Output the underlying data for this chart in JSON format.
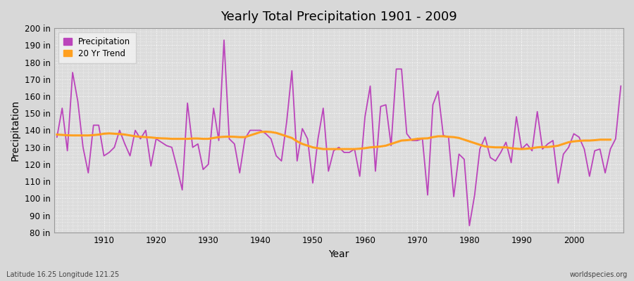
{
  "title": "Yearly Total Precipitation 1901 - 2009",
  "xlabel": "Year",
  "ylabel": "Precipitation",
  "fig_bg_color": "#d8d8d8",
  "plot_bg_color": "#dcdcdc",
  "precip_color": "#bb44bb",
  "trend_color": "#ffa020",
  "legend_labels": [
    "Precipitation",
    "20 Yr Trend"
  ],
  "ylim": [
    80,
    200
  ],
  "yticks": [
    80,
    90,
    100,
    110,
    120,
    130,
    140,
    150,
    160,
    170,
    180,
    190,
    200
  ],
  "xlim": [
    1901,
    2009
  ],
  "xticks": [
    1910,
    1920,
    1930,
    1940,
    1950,
    1960,
    1970,
    1980,
    1990,
    2000
  ],
  "years": [
    1901,
    1902,
    1903,
    1904,
    1905,
    1906,
    1907,
    1908,
    1909,
    1910,
    1911,
    1912,
    1913,
    1914,
    1915,
    1916,
    1917,
    1918,
    1919,
    1920,
    1921,
    1922,
    1923,
    1924,
    1925,
    1926,
    1927,
    1928,
    1929,
    1930,
    1931,
    1932,
    1933,
    1934,
    1935,
    1936,
    1937,
    1938,
    1939,
    1940,
    1941,
    1942,
    1943,
    1944,
    1945,
    1946,
    1947,
    1948,
    1949,
    1950,
    1951,
    1952,
    1953,
    1954,
    1955,
    1956,
    1957,
    1958,
    1959,
    1960,
    1961,
    1962,
    1963,
    1964,
    1965,
    1966,
    1967,
    1968,
    1969,
    1970,
    1971,
    1972,
    1973,
    1974,
    1975,
    1976,
    1977,
    1978,
    1979,
    1980,
    1981,
    1982,
    1983,
    1984,
    1985,
    1986,
    1987,
    1988,
    1989,
    1990,
    1991,
    1992,
    1993,
    1994,
    1995,
    1996,
    1997,
    1998,
    1999,
    2000,
    2001,
    2002,
    2003,
    2004,
    2005,
    2006,
    2007,
    2008,
    2009
  ],
  "precip": [
    136,
    153,
    128,
    174,
    157,
    130,
    115,
    143,
    143,
    125,
    127,
    130,
    140,
    132,
    125,
    140,
    135,
    140,
    119,
    135,
    133,
    131,
    130,
    118,
    105,
    156,
    130,
    132,
    117,
    120,
    153,
    134,
    193,
    135,
    132,
    115,
    135,
    140,
    140,
    140,
    138,
    135,
    125,
    122,
    145,
    175,
    122,
    141,
    135,
    109,
    135,
    153,
    116,
    128,
    130,
    127,
    127,
    129,
    113,
    148,
    166,
    116,
    154,
    155,
    131,
    176,
    176,
    138,
    134,
    134,
    135,
    102,
    155,
    163,
    137,
    136,
    101,
    126,
    123,
    84,
    102,
    129,
    136,
    124,
    122,
    127,
    133,
    121,
    148,
    129,
    132,
    128,
    151,
    129,
    132,
    134,
    109,
    126,
    130,
    138,
    136,
    129,
    113,
    128,
    129,
    115,
    129,
    135,
    166
  ],
  "trend_years": [
    1901,
    1902,
    1903,
    1904,
    1905,
    1906,
    1907,
    1908,
    1909,
    1910,
    1911,
    1912,
    1913,
    1914,
    1915,
    1916,
    1917,
    1918,
    1919,
    1920,
    1921,
    1922,
    1923,
    1924,
    1925,
    1926,
    1927,
    1928,
    1929,
    1930,
    1931,
    1932,
    1933,
    1934,
    1935,
    1936,
    1937,
    1938,
    1939,
    1940,
    1941,
    1942,
    1943,
    1944,
    1945,
    1946,
    1947,
    1948,
    1949,
    1950,
    1951,
    1952,
    1953,
    1954,
    1955,
    1956,
    1957,
    1958,
    1959,
    1960,
    1961,
    1962,
    1963,
    1964,
    1965,
    1966,
    1967,
    1968,
    1969,
    1970,
    1971,
    1972,
    1973,
    1974,
    1975,
    1976,
    1977,
    1978,
    1979,
    1980,
    1981,
    1982,
    1983,
    1984,
    1985,
    1986,
    1987,
    1988,
    1989,
    1990,
    1991,
    1992,
    1993,
    1994,
    1995,
    1996,
    1997,
    1998,
    1999,
    2000,
    2001,
    2002,
    2003,
    2004,
    2005,
    2006,
    2007
  ],
  "trend": [
    137.5,
    137.3,
    137.1,
    137.0,
    137.0,
    137.0,
    137.0,
    137.2,
    137.5,
    138.0,
    138.2,
    138.0,
    137.8,
    137.5,
    137.0,
    136.5,
    136.2,
    136.0,
    135.8,
    135.5,
    135.3,
    135.2,
    135.0,
    135.0,
    135.0,
    135.0,
    135.2,
    135.2,
    135.0,
    135.0,
    135.5,
    136.0,
    136.2,
    136.3,
    136.2,
    136.0,
    136.0,
    137.0,
    138.0,
    139.0,
    139.2,
    139.0,
    138.5,
    137.5,
    136.5,
    135.5,
    133.5,
    132.0,
    131.0,
    130.0,
    129.5,
    129.0,
    129.0,
    129.0,
    129.0,
    129.0,
    129.0,
    129.0,
    129.2,
    129.5,
    130.0,
    130.2,
    130.5,
    131.0,
    132.0,
    133.0,
    134.0,
    134.2,
    134.5,
    135.0,
    135.2,
    135.3,
    136.0,
    136.5,
    136.5,
    136.2,
    136.0,
    135.5,
    134.5,
    133.5,
    132.5,
    131.5,
    130.5,
    130.2,
    130.0,
    130.0,
    130.0,
    129.5,
    129.2,
    129.0,
    129.2,
    129.5,
    130.0,
    130.2,
    130.2,
    130.5,
    131.0,
    132.0,
    133.0,
    133.5,
    133.8,
    134.0,
    134.0,
    134.2,
    134.5,
    134.5,
    134.5
  ],
  "footnote_left": "Latitude 16.25 Longitude 121.25",
  "footnote_right": "worldspecies.org"
}
